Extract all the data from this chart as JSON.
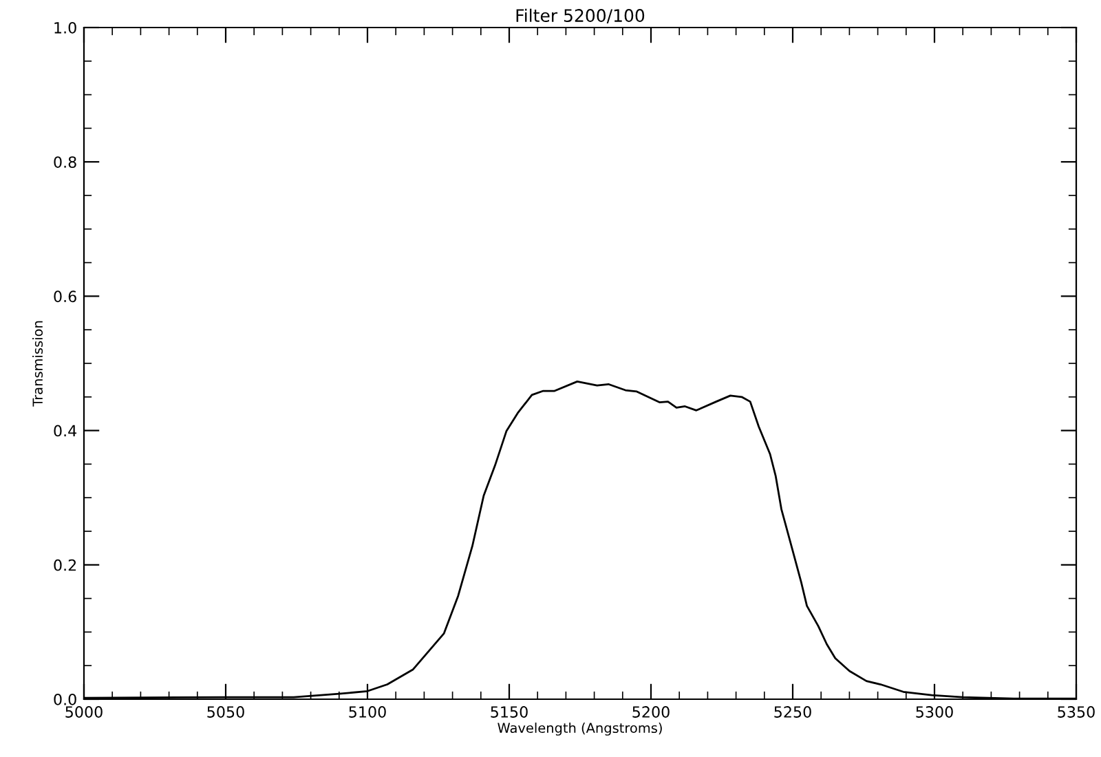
{
  "chart_data": {
    "type": "line",
    "title": "Filter 5200/100",
    "xlabel": "Wavelength (Angstroms)",
    "ylabel": "Transmission",
    "x": [
      5000,
      5050,
      5074,
      5090,
      5100,
      5107,
      5116,
      5127,
      5132,
      5137,
      5141,
      5145,
      5149,
      5153,
      5158,
      5162,
      5166,
      5174,
      5181,
      5185,
      5191,
      5195,
      5203,
      5206,
      5209,
      5212,
      5216,
      5223,
      5228,
      5232,
      5235,
      5238,
      5242,
      5244,
      5246,
      5250,
      5253,
      5255,
      5259,
      5262,
      5265,
      5270,
      5276,
      5281,
      5289,
      5299,
      5310,
      5328,
      5350
    ],
    "series": [
      {
        "color": "#000000",
        "values": [
          0.002,
          0.003,
          0.003,
          0.008,
          0.012,
          0.022,
          0.044,
          0.098,
          0.154,
          0.228,
          0.303,
          0.348,
          0.399,
          0.426,
          0.453,
          0.459,
          0.459,
          0.473,
          0.467,
          0.469,
          0.46,
          0.458,
          0.442,
          0.443,
          0.434,
          0.436,
          0.43,
          0.443,
          0.452,
          0.45,
          0.443,
          0.406,
          0.365,
          0.332,
          0.283,
          0.221,
          0.174,
          0.139,
          0.109,
          0.082,
          0.061,
          0.042,
          0.027,
          0.022,
          0.011,
          0.006,
          0.003,
          0.001,
          0.001
        ]
      }
    ],
    "xlim": [
      5000,
      5350
    ],
    "xticks": [
      5000,
      5050,
      5100,
      5150,
      5200,
      5250,
      5300,
      5350
    ],
    "ylim": [
      0,
      1
    ],
    "yticks": [
      {
        "value": 0,
        "label": "0.0"
      },
      {
        "value": 0.2,
        "label": "0.2"
      },
      {
        "value": 0.4,
        "label": "0.4"
      },
      {
        "value": 0.6,
        "label": "0.6"
      },
      {
        "value": 0.8,
        "label": "0.8"
      },
      {
        "value": 1,
        "label": "1.0"
      }
    ],
    "grid": false,
    "legend": false,
    "marker": "none",
    "line_style": "solid"
  }
}
